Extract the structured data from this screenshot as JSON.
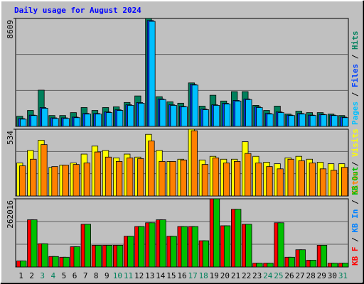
{
  "chart_data": [
    {
      "type": "bar",
      "title": "Daily usage for August 2024",
      "categories": [
        "1",
        "2",
        "3",
        "4",
        "5",
        "6",
        "7",
        "8",
        "9",
        "10",
        "11",
        "12",
        "13",
        "14",
        "15",
        "16",
        "17",
        "18",
        "19",
        "20",
        "21",
        "22",
        "23",
        "24",
        "25",
        "26",
        "27",
        "28",
        "29",
        "30",
        "31"
      ],
      "category_colors": [
        "#000000",
        "#000000",
        "#00805c",
        "#00805c",
        "#000000",
        "#000000",
        "#000000",
        "#000000",
        "#000000",
        "#00805c",
        "#00805c",
        "#000000",
        "#000000",
        "#000000",
        "#000000",
        "#000000",
        "#00805c",
        "#00805c",
        "#000000",
        "#000000",
        "#000000",
        "#000000",
        "#000000",
        "#00805c",
        "#00805c",
        "#000000",
        "#000000",
        "#000000",
        "#000000",
        "#000000",
        "#00805c"
      ],
      "ylim": [
        0,
        8609
      ],
      "yticks": [
        8609
      ],
      "grid_divisions": 3,
      "separator": " / ",
      "legend_reverse": true,
      "series": [
        {
          "name": "Hits",
          "color": "#00805c",
          "values": [
            809,
            1271,
            2890,
            867,
            867,
            1098,
            1503,
            1271,
            1503,
            1560,
            1907,
            2428,
            8609,
            2370,
            1965,
            1850,
            3468,
            1618,
            2485,
            2023,
            2774,
            2774,
            1676,
            1271,
            1618,
            982,
            1214,
            1098,
            1098,
            982,
            867
          ]
        },
        {
          "name": "Files",
          "color": "#0040ff",
          "values": [
            620,
            900,
            1500,
            680,
            680,
            740,
            1030,
            1030,
            1150,
            1320,
            1720,
            1900,
            8450,
            2190,
            1720,
            1600,
            3350,
            1380,
            1720,
            1840,
            2070,
            2190,
            1550,
            1030,
            1150,
            900,
            1030,
            900,
            960,
            900,
            740
          ]
        },
        {
          "name": "Pages",
          "color": "#00c0ff",
          "values": [
            578,
            867,
            1445,
            636,
            636,
            694,
            982,
            982,
            1098,
            1271,
            1676,
            1850,
            8380,
            2139,
            1676,
            1560,
            3295,
            1329,
            1676,
            1792,
            2023,
            2139,
            1503,
            982,
            1098,
            867,
            982,
            867,
            925,
            867,
            694
          ]
        }
      ]
    },
    {
      "type": "bar",
      "ylim": [
        0,
        534
      ],
      "yticks": [
        534
      ],
      "grid_divisions": 3,
      "separator": " / ",
      "legend_reverse": true,
      "series": [
        {
          "name": "Visits",
          "color": "#ffff00",
          "values": [
            264,
            364,
            446,
            229,
            247,
            264,
            335,
            399,
            364,
            305,
            335,
            311,
            493,
            364,
            276,
            294,
            534,
            288,
            317,
            294,
            294,
            434,
            317,
            270,
            258,
            305,
            317,
            294,
            270,
            258,
            258
          ]
        },
        {
          "name": "Sites",
          "color": "#ff8000",
          "values": [
            241,
            294,
            411,
            235,
            247,
            252,
            264,
            352,
            311,
            276,
            305,
            299,
            440,
            276,
            276,
            288,
            522,
            252,
            305,
            264,
            276,
            340,
            264,
            235,
            217,
            294,
            282,
            264,
            217,
            205,
            229
          ]
        }
      ]
    },
    {
      "type": "bar",
      "ylim": [
        0,
        262016
      ],
      "yticks": [
        262016
      ],
      "grid_divisions": 3,
      "separator": " / ",
      "legend_reverse": false,
      "series": [
        {
          "name": "KB F",
          "color": "#ff0000",
          "values": [
            23032,
            181376,
            89250,
            40310,
            37430,
            77730,
            164100,
            83490,
            83490,
            83490,
            118040,
            155470,
            169860,
            181380,
            118040,
            155470,
            155470,
            100770,
            262016,
            158350,
            221700,
            164100,
            14400,
            14400,
            169860,
            37430,
            66220,
            25910,
            83490,
            14400,
            14400
          ]
        },
        {
          "name": "KB In",
          "color": "#0080ff",
          "values": [
            0,
            0,
            0,
            0,
            0,
            0,
            0,
            0,
            0,
            0,
            0,
            0,
            0,
            0,
            0,
            0,
            0,
            0,
            0,
            0,
            0,
            0,
            0,
            0,
            0,
            0,
            0,
            0,
            0,
            0,
            0
          ]
        },
        {
          "name": "KB Out",
          "color": "#00c000",
          "values": [
            23032,
            181376,
            89250,
            40310,
            37430,
            77730,
            164100,
            83490,
            83490,
            83490,
            118040,
            155470,
            169860,
            181380,
            118040,
            155470,
            155470,
            100770,
            262016,
            158350,
            221700,
            164100,
            14400,
            14400,
            169860,
            37430,
            66220,
            25910,
            83490,
            14400,
            14400
          ]
        }
      ]
    }
  ]
}
